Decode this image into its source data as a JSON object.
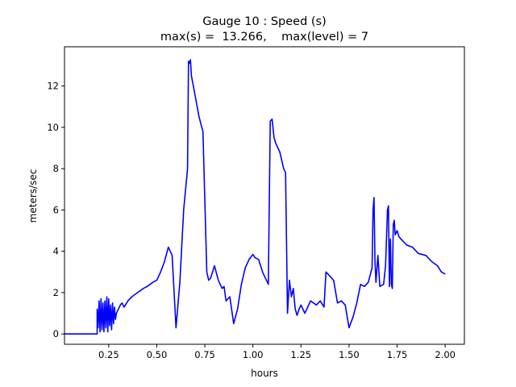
{
  "chart_data": {
    "type": "line",
    "title": "Gauge 10 : Speed (s)",
    "subtitle": "max(s) =  13.266,    max(level) = 7",
    "xlabel": "hours",
    "ylabel": "meters/sec",
    "xlim": [
      0.02,
      2.1
    ],
    "ylim": [
      -0.5,
      13.9
    ],
    "xticks": [
      0.25,
      0.5,
      0.75,
      1.0,
      1.25,
      1.5,
      1.75,
      2.0
    ],
    "xtick_labels": [
      "0.25",
      "0.50",
      "0.75",
      "1.00",
      "1.25",
      "1.50",
      "1.75",
      "2.00"
    ],
    "yticks": [
      0,
      2,
      4,
      6,
      8,
      10,
      12
    ],
    "ytick_labels": [
      "0",
      "2",
      "4",
      "6",
      "8",
      "10",
      "12"
    ],
    "grid": false,
    "color": "#0000ff",
    "series": [
      {
        "x": [
          0.02,
          0.19,
          0.19,
          0.195,
          0.2,
          0.205,
          0.21,
          0.215,
          0.22,
          0.225,
          0.23,
          0.235,
          0.24,
          0.245,
          0.25,
          0.255,
          0.26,
          0.265,
          0.27,
          0.275,
          0.28,
          0.285,
          0.29,
          0.3,
          0.31,
          0.32,
          0.33,
          0.35,
          0.37,
          0.4,
          0.43,
          0.45,
          0.48,
          0.5,
          0.52,
          0.54,
          0.56,
          0.58,
          0.6,
          0.62,
          0.64,
          0.66,
          0.665,
          0.67,
          0.675,
          0.68,
          0.69,
          0.7,
          0.72,
          0.74,
          0.76,
          0.77,
          0.78,
          0.8,
          0.82,
          0.84,
          0.85,
          0.86,
          0.88,
          0.9,
          0.92,
          0.94,
          0.96,
          0.98,
          1.0,
          1.01,
          1.03,
          1.05,
          1.08,
          1.09,
          1.1,
          1.11,
          1.12,
          1.14,
          1.16,
          1.17,
          1.18,
          1.19,
          1.2,
          1.21,
          1.22,
          1.23,
          1.24,
          1.25,
          1.27,
          1.3,
          1.33,
          1.35,
          1.37,
          1.38,
          1.4,
          1.42,
          1.44,
          1.46,
          1.48,
          1.5,
          1.52,
          1.54,
          1.56,
          1.58,
          1.6,
          1.62,
          1.625,
          1.63,
          1.635,
          1.64,
          1.65,
          1.66,
          1.68,
          1.69,
          1.7,
          1.705,
          1.71,
          1.715,
          1.72,
          1.725,
          1.73,
          1.735,
          1.74,
          1.75,
          1.76,
          1.78,
          1.8,
          1.83,
          1.86,
          1.9,
          1.93,
          1.96,
          1.98,
          2.0
        ],
        "y": [
          0,
          0,
          1.2,
          0.3,
          1.6,
          0.1,
          1.7,
          0.2,
          1.5,
          0.1,
          1.6,
          0.3,
          1.8,
          0.1,
          1.7,
          0.4,
          1.4,
          0.2,
          1.5,
          0.5,
          1.3,
          0.7,
          1.0,
          1.2,
          1.4,
          1.5,
          1.3,
          1.6,
          1.8,
          2.0,
          2.2,
          2.3,
          2.5,
          2.6,
          3.0,
          3.5,
          4.2,
          3.8,
          0.3,
          2.5,
          6.0,
          8.0,
          13.2,
          13.1,
          13.266,
          12.5,
          12.0,
          11.5,
          10.5,
          9.8,
          3.0,
          2.6,
          2.7,
          3.3,
          2.6,
          2.2,
          2.3,
          1.6,
          1.8,
          0.5,
          1.2,
          2.4,
          3.2,
          3.6,
          3.85,
          3.7,
          3.6,
          3.0,
          2.4,
          10.3,
          10.4,
          9.5,
          9.2,
          8.8,
          8.0,
          7.8,
          1.0,
          2.6,
          1.8,
          2.2,
          1.2,
          0.9,
          1.2,
          1.4,
          1.0,
          1.6,
          1.4,
          1.6,
          1.3,
          3.0,
          2.8,
          2.6,
          1.5,
          1.6,
          1.4,
          0.3,
          0.8,
          1.5,
          2.4,
          2.3,
          2.5,
          3.2,
          6.0,
          6.6,
          3.5,
          2.5,
          3.8,
          2.3,
          2.4,
          3.3,
          6.0,
          6.2,
          2.3,
          4.6,
          2.4,
          2.2,
          5.3,
          5.5,
          4.8,
          5.0,
          4.7,
          4.5,
          4.3,
          4.2,
          3.9,
          3.8,
          3.5,
          3.3,
          3.0,
          2.9
        ]
      }
    ]
  }
}
